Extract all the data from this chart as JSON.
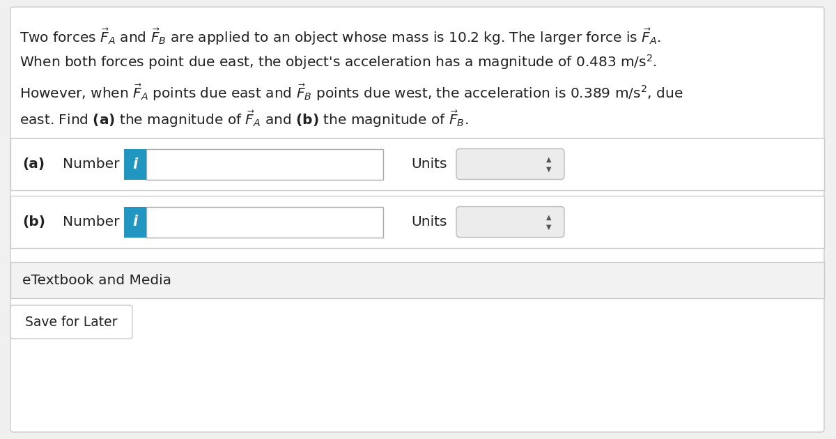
{
  "bg_color": "#f0f0f0",
  "main_bg": "#ffffff",
  "text_color": "#222222",
  "fontsize": 14.5,
  "lh": 38,
  "row_a_label": "(a)",
  "row_b_label": "(b)",
  "number_label": "Number",
  "units_label": "Units",
  "info_btn_color": "#2196C0",
  "info_btn_text": "i",
  "info_btn_text_color": "#ffffff",
  "units_dropdown_bg": "#e8e8e8",
  "units_dropdown_border": "#bbbbbb",
  "row_border_color": "#cccccc",
  "etextbook_bg": "#f2f2f2",
  "etextbook_border": "#cccccc",
  "etextbook_text": "eTextbook and Media",
  "save_border": "#cccccc",
  "save_text": "Save for Later",
  "outer_bg": "#f0f0f0",
  "line1": "Two forces $\\vec{F}_A$ and $\\vec{F}_B$ are applied to an object whose mass is 10.2 kg. The larger force is $\\vec{F}_A$.",
  "line2": "When both forces point due east, the object's acceleration has a magnitude of 0.483 m/s$^2$.",
  "line3": "However, when $\\vec{F}_A$ points due east and $\\vec{F}_B$ points due west, the acceleration is 0.389 m/s$^2$, due",
  "line4": "east. Find $\\mathbf{(a)}$ the magnitude of $\\vec{F}_A$ and $\\mathbf{(b)}$ the magnitude of $\\vec{F}_B$."
}
